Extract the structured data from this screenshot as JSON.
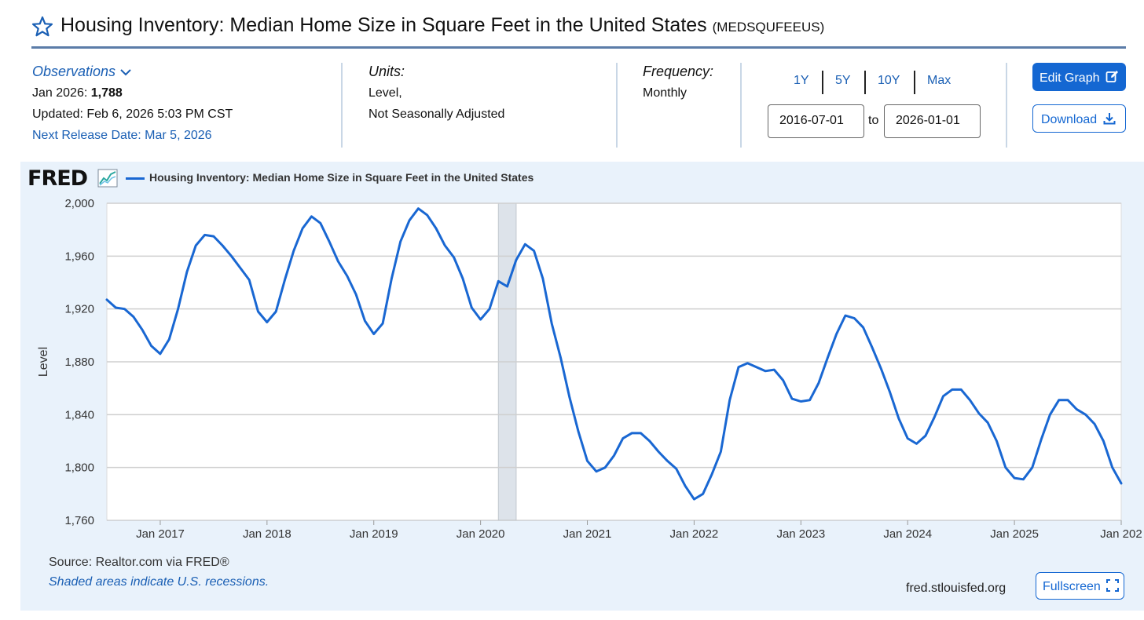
{
  "header": {
    "title": "Housing Inventory: Median Home Size in Square Feet in the United States",
    "series_code": "(MEDSQUFEEUS)",
    "star_icon": "star-outline-icon"
  },
  "observations": {
    "heading": "Observations",
    "latest_label": "Jan 2026:",
    "latest_value": "1,788",
    "updated": "Updated: Feb 6, 2026 5:03 PM CST",
    "next_release": "Next Release Date: Mar 5, 2026"
  },
  "units": {
    "heading": "Units:",
    "line1": "Level,",
    "line2": "Not Seasonally Adjusted"
  },
  "frequency": {
    "heading": "Frequency:",
    "value": "Monthly"
  },
  "range": {
    "buttons": [
      "1Y",
      "5Y",
      "10Y",
      "Max"
    ],
    "start": "2016-07-01",
    "to_label": "to",
    "end": "2026-01-01"
  },
  "actions": {
    "edit_label": "Edit Graph",
    "download_label": "Download",
    "fullscreen_label": "Fullscreen"
  },
  "chart_panel": {
    "logo": "FRED",
    "source": "Source: Realtor.com via FRED®",
    "shaded_note": "Shaded areas indicate U.S. recessions.",
    "url": "fred.stlouisfed.org"
  },
  "colors": {
    "line": "#1967d2",
    "accent": "#1467d2",
    "panel_bg": "#e9f2fb",
    "recession": "#dde3ea"
  },
  "chart_data": {
    "type": "line",
    "title": "",
    "xlabel": "",
    "ylabel": "Level",
    "x_start": "2016-07",
    "x_end": "2026-01",
    "ylim": [
      1760,
      2000
    ],
    "yticks": [
      1760,
      1800,
      1840,
      1880,
      1920,
      1960,
      2000
    ],
    "ytick_labels": [
      "1,760",
      "1,800",
      "1,840",
      "1,880",
      "1,920",
      "1,960",
      "2,000"
    ],
    "xticks": [
      "2017-01",
      "2018-01",
      "2019-01",
      "2020-01",
      "2021-01",
      "2022-01",
      "2023-01",
      "2024-01",
      "2025-01",
      "2026-01"
    ],
    "xtick_labels": [
      "Jan 2017",
      "Jan 2018",
      "Jan 2019",
      "Jan 2020",
      "Jan 2021",
      "Jan 2022",
      "Jan 2023",
      "Jan 2024",
      "Jan 2025",
      "Jan 202"
    ],
    "grid": true,
    "legend": "top-left",
    "recessions": [
      [
        "2020-03",
        "2020-04"
      ]
    ],
    "series": [
      {
        "name": "Housing Inventory: Median Home Size in Square Feet in the United States",
        "x": [
          "2016-07",
          "2016-08",
          "2016-09",
          "2016-10",
          "2016-11",
          "2016-12",
          "2017-01",
          "2017-02",
          "2017-03",
          "2017-04",
          "2017-05",
          "2017-06",
          "2017-07",
          "2017-08",
          "2017-09",
          "2017-10",
          "2017-11",
          "2017-12",
          "2018-01",
          "2018-02",
          "2018-03",
          "2018-04",
          "2018-05",
          "2018-06",
          "2018-07",
          "2018-08",
          "2018-09",
          "2018-10",
          "2018-11",
          "2018-12",
          "2019-01",
          "2019-02",
          "2019-03",
          "2019-04",
          "2019-05",
          "2019-06",
          "2019-07",
          "2019-08",
          "2019-09",
          "2019-10",
          "2019-11",
          "2019-12",
          "2020-01",
          "2020-02",
          "2020-03",
          "2020-04",
          "2020-05",
          "2020-06",
          "2020-07",
          "2020-08",
          "2020-09",
          "2020-10",
          "2020-11",
          "2020-12",
          "2021-01",
          "2021-02",
          "2021-03",
          "2021-04",
          "2021-05",
          "2021-06",
          "2021-07",
          "2021-08",
          "2021-09",
          "2021-10",
          "2021-11",
          "2021-12",
          "2022-01",
          "2022-02",
          "2022-03",
          "2022-04",
          "2022-05",
          "2022-06",
          "2022-07",
          "2022-08",
          "2022-09",
          "2022-10",
          "2022-11",
          "2022-12",
          "2023-01",
          "2023-02",
          "2023-03",
          "2023-04",
          "2023-05",
          "2023-06",
          "2023-07",
          "2023-08",
          "2023-09",
          "2023-10",
          "2023-11",
          "2023-12",
          "2024-01",
          "2024-02",
          "2024-03",
          "2024-04",
          "2024-05",
          "2024-06",
          "2024-07",
          "2024-08",
          "2024-09",
          "2024-10",
          "2024-11",
          "2024-12",
          "2025-01",
          "2025-02",
          "2025-03",
          "2025-04",
          "2025-05",
          "2025-06",
          "2025-07",
          "2025-08",
          "2025-09",
          "2025-10",
          "2025-11",
          "2025-12",
          "2026-01"
        ],
        "values": [
          1927,
          1921,
          1920,
          1914,
          1904,
          1892,
          1886,
          1897,
          1920,
          1948,
          1968,
          1976,
          1975,
          1968,
          1960,
          1951,
          1942,
          1918,
          1910,
          1918,
          1942,
          1964,
          1981,
          1990,
          1985,
          1971,
          1956,
          1945,
          1931,
          1911,
          1901,
          1909,
          1943,
          1971,
          1987,
          1996,
          1991,
          1981,
          1968,
          1959,
          1943,
          1921,
          1912,
          1920,
          1941,
          1937,
          1957,
          1969,
          1964,
          1943,
          1909,
          1883,
          1853,
          1827,
          1805,
          1797,
          1800,
          1809,
          1822,
          1826,
          1826,
          1820,
          1812,
          1805,
          1799,
          1786,
          1776,
          1780,
          1795,
          1812,
          1851,
          1876,
          1879,
          1876,
          1873,
          1874,
          1866,
          1852,
          1850,
          1851,
          1864,
          1883,
          1901,
          1915,
          1913,
          1906,
          1891,
          1875,
          1857,
          1837,
          1822,
          1818,
          1824,
          1838,
          1854,
          1859,
          1859,
          1851,
          1841,
          1834,
          1820,
          1800,
          1792,
          1791,
          1800,
          1821,
          1840,
          1851,
          1851,
          1844,
          1840,
          1833,
          1820,
          1800,
          1788
        ]
      }
    ]
  }
}
